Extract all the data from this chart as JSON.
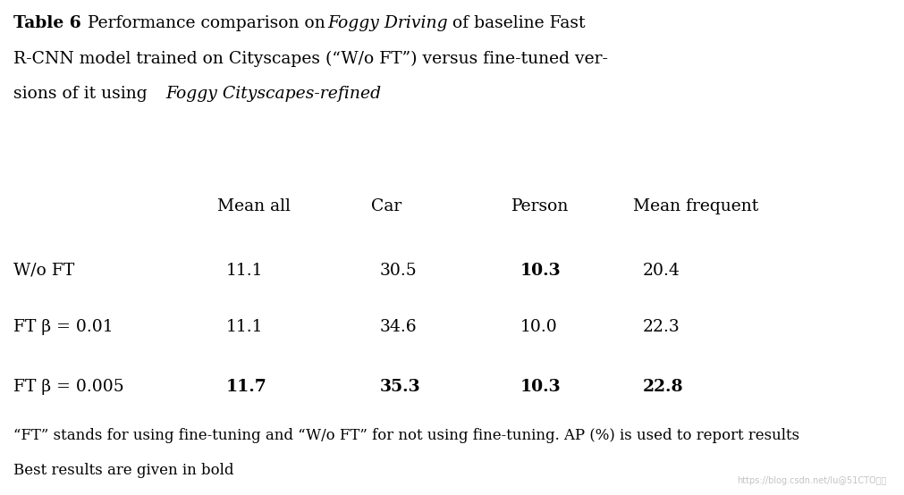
{
  "title_bold": "Table 6",
  "title_normal": "  Performance comparison on ",
  "title_italic1": "Foggy Driving",
  "title_after1": " of baseline Fast\nR-CNN model trained on Cityscapes (“W/o FT”) versus fine-tuned ver-\nsions of it using ",
  "title_italic2": "Foggy Cityscapes-refined",
  "col_headers": [
    "",
    "Mean all",
    "Car",
    "Person",
    "Mean frequent"
  ],
  "rows": [
    {
      "label": "W/o FT",
      "mean_all": "11.1",
      "car": "30.5",
      "person": "10.3",
      "mean_freq": "20.4",
      "bold_mean_all": false,
      "bold_car": false,
      "bold_person": true,
      "bold_mean_freq": false
    },
    {
      "label": "FT β = 0.01",
      "mean_all": "11.1",
      "car": "34.6",
      "person": "10.0",
      "mean_freq": "22.3",
      "bold_mean_all": false,
      "bold_car": false,
      "bold_person": false,
      "bold_mean_freq": false
    },
    {
      "label": "FT β = 0.005",
      "mean_all": "11.7",
      "car": "35.3",
      "person": "10.3",
      "mean_freq": "22.8",
      "bold_mean_all": true,
      "bold_car": true,
      "bold_person": true,
      "bold_mean_freq": true
    }
  ],
  "footnote_line1": "“FT” stands for using fine-tuning and “W/o FT” for not using fine-tuning. AP (%) is used to report results",
  "footnote_line2": "Best results are given in bold",
  "watermark": "https://blog.csdn.net/lu@51CTO博客",
  "bg_color": "#ffffff",
  "font_size": 13.5,
  "header_font_size": 13.5
}
